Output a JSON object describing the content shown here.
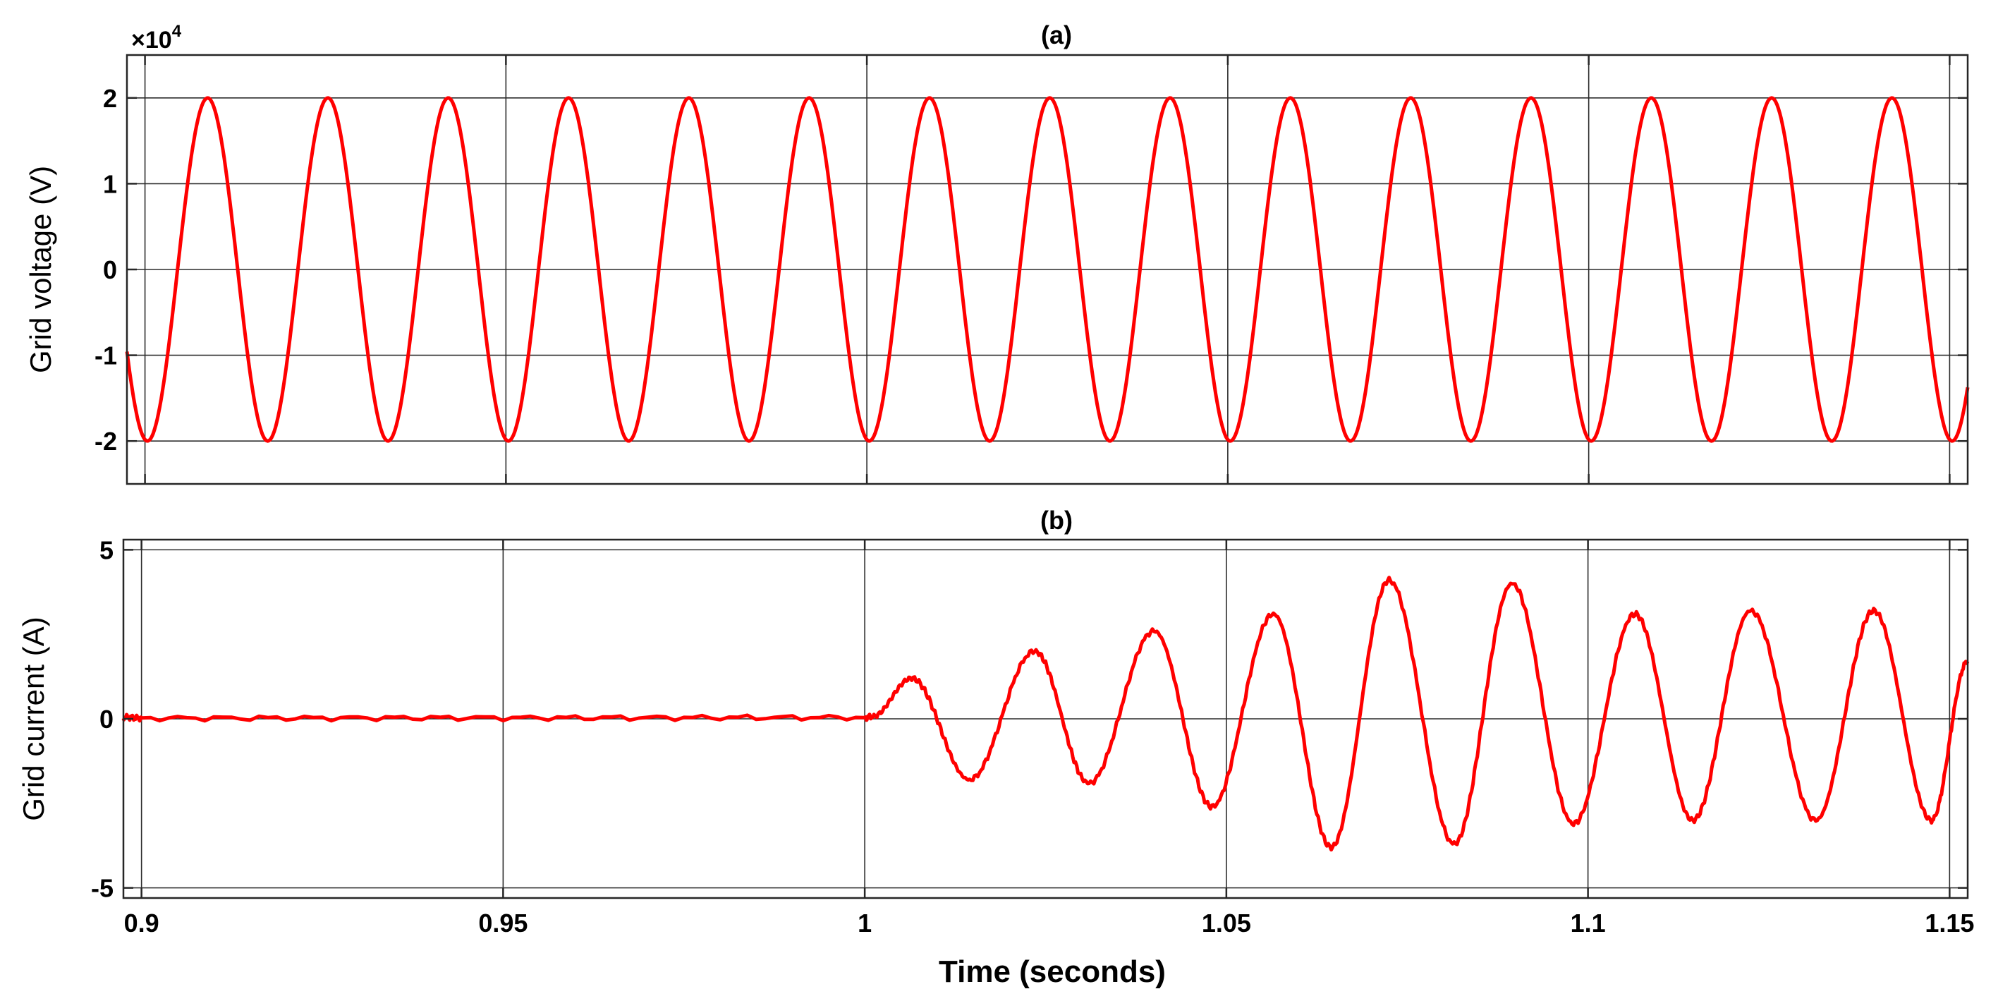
{
  "chart_data": [
    {
      "id": "a",
      "type": "line",
      "title": "(a)",
      "xlabel": "",
      "ylabel": "Grid voltage (V)",
      "y_multiplier_label": {
        "base": "×10",
        "exponent": "4"
      },
      "xlim": [
        0.8975,
        1.1525
      ],
      "ylim": [
        -2.5,
        2.5
      ],
      "xticks": [
        0.9,
        0.95,
        1,
        1.05,
        1.1,
        1.15
      ],
      "yticks": [
        -2,
        -1,
        0,
        1,
        2
      ],
      "yticklabels": [
        "-2",
        "-1",
        "0",
        "1",
        "2"
      ],
      "grid": true,
      "series": [
        {
          "color": "#ff0000",
          "model": "sinusoid",
          "amplitude": 2,
          "frequency_hz": 60,
          "phase_rad": -1.7,
          "x_start": 0.8975,
          "x_end": 1.1525
        }
      ]
    },
    {
      "id": "b",
      "type": "line",
      "title": "(b)",
      "xlabel": "Time (seconds)",
      "ylabel": "Grid current (A)",
      "xlim": [
        0.8975,
        1.1525
      ],
      "ylim": [
        -5.3,
        5.3
      ],
      "xticks": [
        0.9,
        0.95,
        1,
        1.05,
        1.1,
        1.15
      ],
      "xticklabels": [
        "0.9",
        "0.95",
        "1",
        "1.05",
        "1.1",
        "1.15"
      ],
      "yticks": [
        -5,
        0,
        5
      ],
      "yticklabels": [
        "-5",
        "0",
        "5"
      ],
      "grid": true,
      "series": [
        {
          "color": "#ff0000",
          "x": [
            0.8975,
            0.9,
            0.95,
            1.0,
            1.001,
            1.0065,
            1.0145,
            1.0235,
            1.031,
            1.04,
            1.048,
            1.0565,
            1.0645,
            1.0725,
            1.0815,
            1.0895,
            1.098,
            1.1065,
            1.1145,
            1.1225,
            1.1315,
            1.1395,
            1.1475,
            1.1525
          ],
          "y": [
            0.05,
            0.02,
            0.03,
            0.04,
            0.06,
            1.2,
            -1.8,
            2.0,
            -1.9,
            2.6,
            -2.6,
            3.1,
            -3.8,
            4.1,
            -3.7,
            4.0,
            -3.1,
            3.1,
            -3.0,
            3.2,
            -3.0,
            3.2,
            -3.0,
            1.7
          ]
        }
      ]
    }
  ]
}
